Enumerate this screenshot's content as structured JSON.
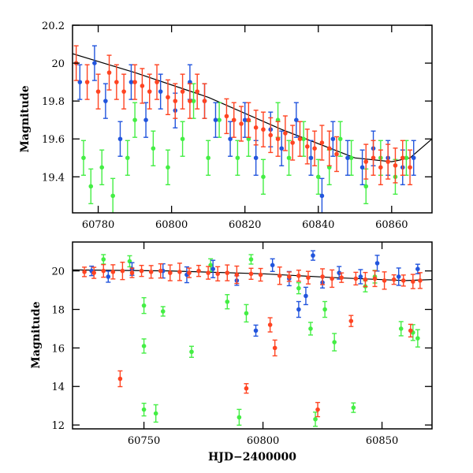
{
  "chart_data": [
    {
      "type": "scatter",
      "panel": "top",
      "xlabel": "",
      "ylabel": "Magnitude",
      "xlim": [
        60773,
        60871
      ],
      "ylim": [
        20.2,
        19.21
      ],
      "y_inverted": true,
      "xticks": [
        60780,
        60800,
        60820,
        60840,
        60860
      ],
      "yticks": [
        19.4,
        19.6,
        19.8,
        20,
        20.2
      ],
      "grid": false,
      "error_bars": true,
      "series": [
        {
          "color": "#44ee44",
          "points": [
            [
              60776,
              19.5
            ],
            [
              60778,
              19.35
            ],
            [
              60781,
              19.45
            ],
            [
              60784,
              19.3
            ],
            [
              60788,
              19.5
            ],
            [
              60790,
              19.7
            ],
            [
              60795,
              19.55
            ],
            [
              60799,
              19.45
            ],
            [
              60803,
              19.6
            ],
            [
              60806,
              19.8
            ],
            [
              60810,
              19.5
            ],
            [
              60813,
              19.7
            ],
            [
              60818,
              19.5
            ],
            [
              60821,
              19.6
            ],
            [
              60825,
              19.4
            ],
            [
              60829,
              19.7
            ],
            [
              60832,
              19.5
            ],
            [
              60836,
              19.6
            ],
            [
              60840,
              19.4
            ],
            [
              60843,
              19.45
            ],
            [
              60846,
              19.6
            ],
            [
              60849,
              19.5
            ],
            [
              60853,
              19.35
            ],
            [
              60857,
              19.5
            ],
            [
              60861,
              19.4
            ],
            [
              60864,
              19.5
            ]
          ]
        },
        {
          "color": "#2255dd",
          "points": [
            [
              60775,
              19.9
            ],
            [
              60779,
              20.0
            ],
            [
              60782,
              19.8
            ],
            [
              60786,
              19.6
            ],
            [
              60789,
              19.9
            ],
            [
              60793,
              19.7
            ],
            [
              60797,
              19.85
            ],
            [
              60801,
              19.75
            ],
            [
              60805,
              19.9
            ],
            [
              60809,
              19.8
            ],
            [
              60812,
              19.7
            ],
            [
              60816,
              19.6
            ],
            [
              60820,
              19.7
            ],
            [
              60823,
              19.5
            ],
            [
              60827,
              19.65
            ],
            [
              60830,
              19.55
            ],
            [
              60834,
              19.7
            ],
            [
              60838,
              19.5
            ],
            [
              60841,
              19.3
            ],
            [
              60844,
              19.6
            ],
            [
              60848,
              19.5
            ],
            [
              60852,
              19.45
            ],
            [
              60855,
              19.55
            ],
            [
              60859,
              19.5
            ],
            [
              60863,
              19.45
            ],
            [
              60866,
              19.5
            ]
          ]
        },
        {
          "color": "#ff4422",
          "points": [
            [
              60774,
              20.0
            ],
            [
              60777,
              19.9
            ],
            [
              60780,
              19.85
            ],
            [
              60783,
              19.95
            ],
            [
              60785,
              19.9
            ],
            [
              60787,
              19.85
            ],
            [
              60790,
              19.9
            ],
            [
              60792,
              19.88
            ],
            [
              60794,
              19.85
            ],
            [
              60796,
              19.9
            ],
            [
              60799,
              19.82
            ],
            [
              60801,
              19.8
            ],
            [
              60803,
              19.85
            ],
            [
              60805,
              19.8
            ],
            [
              60807,
              19.85
            ],
            [
              60809,
              19.8
            ],
            [
              60815,
              19.72
            ],
            [
              60817,
              19.7
            ],
            [
              60819,
              19.68
            ],
            [
              60821,
              19.7
            ],
            [
              60823,
              19.66
            ],
            [
              60825,
              19.65
            ],
            [
              60827,
              19.62
            ],
            [
              60829,
              19.6
            ],
            [
              60831,
              19.63
            ],
            [
              60833,
              19.58
            ],
            [
              60835,
              19.6
            ],
            [
              60837,
              19.56
            ],
            [
              60839,
              19.55
            ],
            [
              60841,
              19.58
            ],
            [
              60843,
              19.55
            ],
            [
              60845,
              19.52
            ],
            [
              60853,
              19.48
            ],
            [
              60855,
              19.5
            ],
            [
              60857,
              19.45
            ],
            [
              60859,
              19.48
            ],
            [
              60861,
              19.46
            ],
            [
              60863,
              19.5
            ],
            [
              60865,
              19.45
            ]
          ]
        }
      ],
      "model_curve": [
        [
          60773,
          20.05
        ],
        [
          60790,
          19.95
        ],
        [
          60810,
          19.82
        ],
        [
          60830,
          19.65
        ],
        [
          60850,
          19.5
        ],
        [
          60860,
          19.48
        ],
        [
          60865,
          19.5
        ],
        [
          60871,
          19.6
        ]
      ]
    },
    {
      "type": "scatter",
      "panel": "bottom",
      "xlabel": "HJD−2400000",
      "ylabel": "Magnitude",
      "xlim": [
        60720,
        60871
      ],
      "ylim": [
        21.5,
        11.8
      ],
      "y_inverted": true,
      "xticks": [
        60750,
        60800,
        60850
      ],
      "yticks": [
        12,
        14,
        16,
        18,
        20
      ],
      "grid": false,
      "error_bars": true,
      "series": [
        {
          "color": "#44ee44",
          "points": [
            [
              60733,
              20.6
            ],
            [
              60744,
              20.5
            ],
            [
              60750,
              12.8
            ],
            [
              60750,
              16.1
            ],
            [
              60750,
              18.2
            ],
            [
              60755,
              12.6
            ],
            [
              60758,
              17.9
            ],
            [
              60770,
              15.8
            ],
            [
              60778,
              20.3
            ],
            [
              60785,
              18.4
            ],
            [
              60790,
              12.4
            ],
            [
              60793,
              17.8
            ],
            [
              60795,
              20.6
            ],
            [
              60815,
              19.1
            ],
            [
              60820,
              17.0
            ],
            [
              60822,
              12.3
            ],
            [
              60826,
              18.0
            ],
            [
              60830,
              16.3
            ],
            [
              60838,
              12.9
            ],
            [
              60843,
              19.2
            ],
            [
              60847,
              19.7
            ],
            [
              60858,
              17.0
            ],
            [
              60863,
              16.8
            ],
            [
              60865,
              16.5
            ]
          ]
        },
        {
          "color": "#2255dd",
          "points": [
            [
              60728,
              20.0
            ],
            [
              60735,
              19.7
            ],
            [
              60745,
              20.1
            ],
            [
              60758,
              20.0
            ],
            [
              60768,
              19.8
            ],
            [
              60779,
              20.1
            ],
            [
              60789,
              19.5
            ],
            [
              60797,
              16.9
            ],
            [
              60804,
              20.3
            ],
            [
              60811,
              19.6
            ],
            [
              60815,
              18.0
            ],
            [
              60818,
              18.7
            ],
            [
              60821,
              20.8
            ],
            [
              60825,
              19.4
            ],
            [
              60832,
              19.9
            ],
            [
              60841,
              19.7
            ],
            [
              60848,
              20.4
            ],
            [
              60857,
              19.7
            ],
            [
              60865,
              20.1
            ]
          ]
        },
        {
          "color": "#ff4422",
          "points": [
            [
              60725,
              19.95
            ],
            [
              60729,
              19.9
            ],
            [
              60733,
              20.0
            ],
            [
              60737,
              19.95
            ],
            [
              60740,
              14.4
            ],
            [
              60741,
              20.0
            ],
            [
              60745,
              19.9
            ],
            [
              60749,
              20.0
            ],
            [
              60753,
              19.95
            ],
            [
              60757,
              20.0
            ],
            [
              60761,
              19.9
            ],
            [
              60765,
              19.95
            ],
            [
              60769,
              19.9
            ],
            [
              60773,
              20.0
            ],
            [
              60777,
              19.9
            ],
            [
              60781,
              19.85
            ],
            [
              60785,
              19.9
            ],
            [
              60789,
              19.8
            ],
            [
              60793,
              13.9
            ],
            [
              60795,
              19.85
            ],
            [
              60799,
              19.8
            ],
            [
              60803,
              17.2
            ],
            [
              60805,
              16.0
            ],
            [
              60807,
              19.75
            ],
            [
              60811,
              19.7
            ],
            [
              60815,
              19.75
            ],
            [
              60819,
              19.65
            ],
            [
              60823,
              12.8
            ],
            [
              60825,
              19.7
            ],
            [
              60829,
              19.6
            ],
            [
              60833,
              19.65
            ],
            [
              60837,
              17.4
            ],
            [
              60839,
              19.6
            ],
            [
              60843,
              19.55
            ],
            [
              60847,
              19.6
            ],
            [
              60851,
              19.5
            ],
            [
              60855,
              19.55
            ],
            [
              60859,
              19.5
            ],
            [
              60862,
              16.9
            ],
            [
              60863,
              19.45
            ],
            [
              60866,
              19.5
            ]
          ]
        }
      ],
      "model_curve": [
        [
          60720,
          20.05
        ],
        [
          60760,
          20.0
        ],
        [
          60800,
          19.85
        ],
        [
          60830,
          19.65
        ],
        [
          60860,
          19.5
        ],
        [
          60871,
          19.55
        ]
      ]
    }
  ]
}
